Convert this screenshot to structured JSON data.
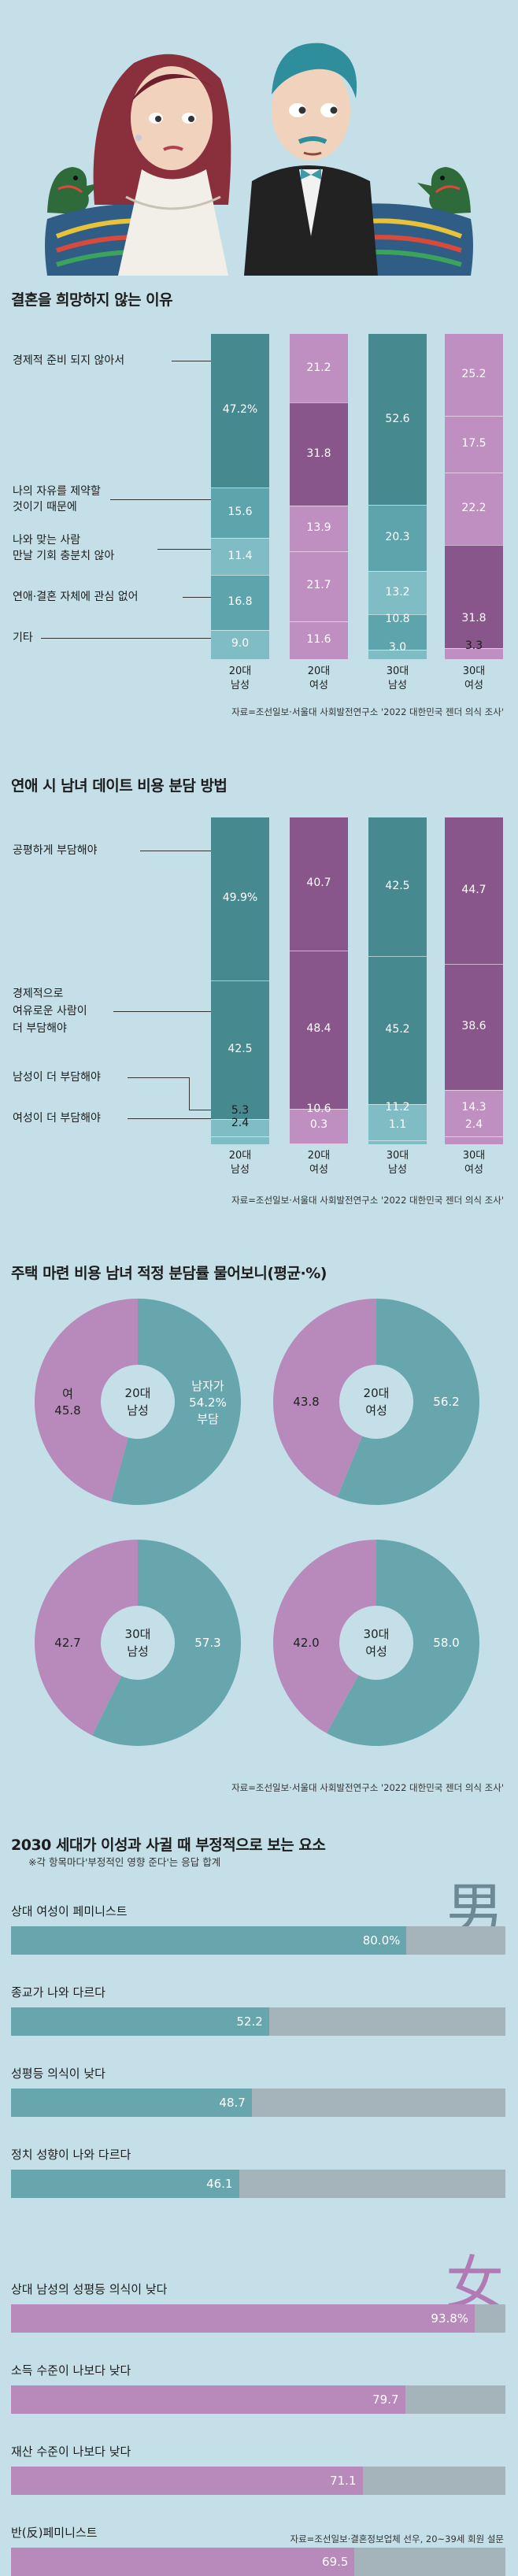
{
  "colors": {
    "background": "#c5dfe9",
    "male_teal": "#468a90",
    "teal_mid": "#5da4ac",
    "teal_light": "#7fbcc4",
    "female_pink": "#c08fc1",
    "purple_dark": "#88568a",
    "donut_teal": "#68a6ae",
    "donut_pink": "#b889bb",
    "bar_track": "#a5b3ba"
  },
  "section1": {
    "title": "결혼을 희망하지 않는 이유",
    "source": "자료=조선일보·서울대 사회발전연구소 '2022 대한민국 젠더 의식 조사'",
    "chart_data": {
      "type": "stacked-bar",
      "title": "결혼을 희망하지 않는 이유",
      "categories": [
        "경제적 준비 되지 않아서",
        "나의 자유를 제약할 것이기 때문에",
        "나와 맞는 사람 만날 기회 충분치 않아",
        "연애·결혼 자체에 관심 없어",
        "기타"
      ],
      "columns": [
        {
          "label_top": "20대",
          "label_bottom": "남성",
          "values": [
            47.2,
            15.6,
            11.4,
            16.8,
            9.0
          ],
          "labels": [
            "47.2%",
            "15.6",
            "11.4",
            "16.8",
            "9.0"
          ]
        },
        {
          "label_top": "20대",
          "label_bottom": "여성",
          "values": [
            21.2,
            31.8,
            13.9,
            21.7,
            11.6
          ],
          "labels": [
            "21.2",
            "31.8",
            "13.9",
            "21.7",
            "11.6"
          ]
        },
        {
          "label_top": "30대",
          "label_bottom": "남성",
          "values": [
            52.6,
            20.3,
            13.2,
            10.8,
            3.0
          ],
          "labels": [
            "52.6",
            "20.3",
            "13.2",
            "10.8",
            "3.0"
          ]
        },
        {
          "label_top": "30대",
          "label_bottom": "여성",
          "values": [
            25.2,
            17.5,
            22.2,
            31.8,
            3.3
          ],
          "labels": [
            "25.2",
            "17.5",
            "22.2",
            "31.8",
            "3.3"
          ]
        }
      ]
    },
    "row_labels": [
      "경제적 준비 되지 않아서",
      "나의 자유를 제약할",
      "것이기 때문에",
      "나와 맞는 사람",
      "만날 기회 충분치 않아",
      "연애·결혼 자체에 관심 없어",
      "기타"
    ]
  },
  "section2": {
    "title": "연애 시 남녀 데이트 비용 분담 방법",
    "source": "자료=조선일보·서울대 사회발전연구소 '2022 대한민국 젠더 의식 조사'",
    "chart_data": {
      "type": "stacked-bar",
      "title": "연애 시 남녀 데이트 비용 분담 방법",
      "categories": [
        "공평하게 부담해야",
        "경제적으로 여유로운 사람이 더 부담해야",
        "남성이 더 부담해야",
        "여성이 더 부담해야"
      ],
      "columns": [
        {
          "label_top": "20대",
          "label_bottom": "남성",
          "values": [
            49.9,
            42.5,
            5.3,
            2.4
          ],
          "labels": [
            "49.9%",
            "42.5",
            "5.3",
            "2.4"
          ]
        },
        {
          "label_top": "20대",
          "label_bottom": "여성",
          "values": [
            40.7,
            48.4,
            10.6,
            0.3
          ],
          "labels": [
            "40.7",
            "48.4",
            "10.6",
            "0.3"
          ]
        },
        {
          "label_top": "30대",
          "label_bottom": "남성",
          "values": [
            42.5,
            45.2,
            11.2,
            1.1
          ],
          "labels": [
            "42.5",
            "45.2",
            "11.2",
            "1.1"
          ]
        },
        {
          "label_top": "30대",
          "label_bottom": "여성",
          "values": [
            44.7,
            38.6,
            14.3,
            2.4
          ],
          "labels": [
            "44.7",
            "38.6",
            "14.3",
            "2.4"
          ]
        }
      ]
    },
    "row_labels": [
      "공평하게 부담해야",
      "경제적으로",
      "여유로운 사람이",
      "더 부담해야",
      "남성이 더 부담해야",
      "여성이 더 부담해야"
    ]
  },
  "section3": {
    "title": "주택 마련 비용 남녀 적정 분담률 물어보니(평균·%)",
    "source": "자료=조선일보·서울대 사회발전연구소 '2022 대한민국 젠더 의식 조사'",
    "chart_data": {
      "type": "pie",
      "title": "주택 마련 비용 남녀 적정 분담률 물어보니(평균·%)",
      "donuts": [
        {
          "center_top": "20대",
          "center_bottom": "남성",
          "male": 54.2,
          "female": 45.8,
          "male_lines": [
            "남자가",
            "54.2%",
            "부담"
          ],
          "female_lines": [
            "여",
            "45.8"
          ]
        },
        {
          "center_top": "20대",
          "center_bottom": "여성",
          "male": 56.2,
          "female": 43.8,
          "male_lines": [
            "56.2"
          ],
          "female_lines": [
            "43.8"
          ]
        },
        {
          "center_top": "30대",
          "center_bottom": "남성",
          "male": 57.3,
          "female": 42.7,
          "male_lines": [
            "57.3"
          ],
          "female_lines": [
            "42.7"
          ]
        },
        {
          "center_top": "30대",
          "center_bottom": "여성",
          "male": 58.0,
          "female": 42.0,
          "male_lines": [
            "58.0"
          ],
          "female_lines": [
            "42.0"
          ]
        }
      ]
    }
  },
  "section4": {
    "title": "2030 세대가 이성과 사귈 때 부정적으로 보는 요소",
    "subtitle": "※각 항목마다'부정적인 영향 준다'는 응답 합계",
    "source": "자료=조선일보·결혼정보업체 선우, 20~39세 회원 설문",
    "male_char": "男",
    "female_char": "女",
    "chart_data": {
      "type": "bar",
      "title": "2030 세대가 이성과 사귈 때 부정적으로 보는 요소",
      "xlim": [
        0,
        100
      ],
      "male": [
        {
          "label": "상대 여성이 페미니스트",
          "value": 80.0,
          "text": "80.0%"
        },
        {
          "label": "종교가 나와 다르다",
          "value": 52.2,
          "text": "52.2"
        },
        {
          "label": "성평등 의식이 낮다",
          "value": 48.7,
          "text": "48.7"
        },
        {
          "label": "정치 성향이 나와 다르다",
          "value": 46.1,
          "text": "46.1"
        }
      ],
      "female": [
        {
          "label": "상대 남성의 성평등 의식이 낮다",
          "value": 93.8,
          "text": "93.8%"
        },
        {
          "label": "소득 수준이 나보다 낮다",
          "value": 79.7,
          "text": "79.7"
        },
        {
          "label": "재산 수준이 나보다 낮다",
          "value": 71.1,
          "text": "71.1"
        },
        {
          "label": "반(反)페미니스트",
          "value": 69.5,
          "text": "69.5"
        }
      ]
    }
  }
}
